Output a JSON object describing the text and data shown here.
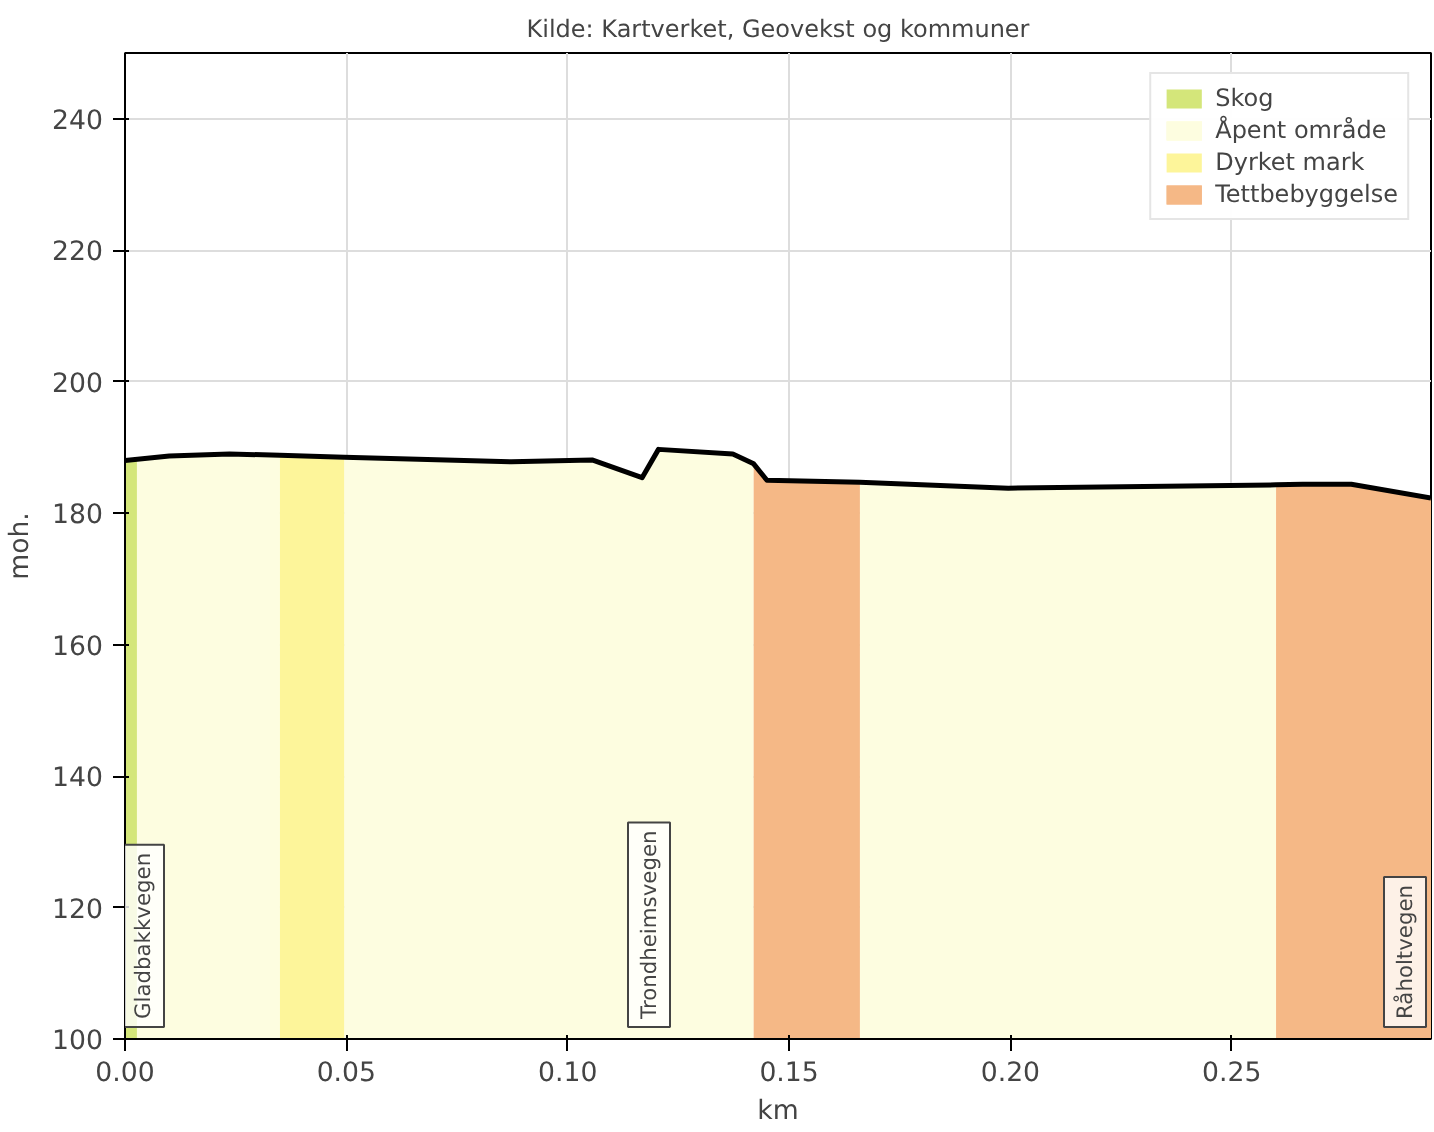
{
  "chart_data": {
    "type": "area",
    "title": "Kilde: Kartverket, Geovekst og kommuner",
    "xlabel": "km",
    "ylabel": "moh.",
    "xlim": [
      0,
      0.295
    ],
    "ylim": [
      100,
      250
    ],
    "xticks": [
      {
        "value": 0,
        "label": "0.00"
      },
      0.05,
      {
        "value": 0.1,
        "label": "0.10"
      },
      0.15,
      {
        "value": 0.2,
        "label": "0.20"
      },
      0.25
    ],
    "yticks": [
      100,
      120,
      140,
      160,
      180,
      200,
      220,
      240
    ],
    "grid": true,
    "legend": "top right",
    "series": [
      {
        "name": "Skog",
        "color": "#d4e67a",
        "x": [
          0,
          0.0027
        ],
        "values": [
          188,
          188.2
        ]
      },
      {
        "name": "Åpent område",
        "color": "#fdfde0",
        "x": [
          0.0027,
          0.01,
          0.0236,
          0.035,
          0.04,
          0.0495,
          0.06,
          0.0873,
          0.1055,
          0.1168,
          0.1205,
          0.1373,
          0.142,
          0.15,
          0.166,
          0.1995,
          0.26
        ],
        "values": [
          188.2,
          188.7,
          189.0,
          188.8,
          null,
          188.5,
          188.3,
          187.8,
          188.1,
          185.4,
          189.7,
          189.0,
          187.5,
          null,
          184.7,
          183.8,
          184.3
        ]
      },
      {
        "name": "Dyrket mark",
        "color": "#fdf59a",
        "x": [
          0.035,
          0.0495
        ],
        "values": [
          188.8,
          188.5
        ]
      },
      {
        "name": "Tettbebyggelse",
        "color": "#f5b886",
        "x": [
          0.142,
          0.145,
          0.166,
          0.2,
          0.26,
          0.266,
          0.277,
          0.295
        ],
        "values": [
          187.5,
          185.0,
          184.7,
          null,
          184.3,
          184.4,
          184.4,
          182.3
        ]
      },
      {
        "type": "line",
        "color": "#000000",
        "x": [
          0,
          0.01,
          0.0236,
          0.035,
          0.0495,
          0.06,
          0.0873,
          0.1055,
          0.1168,
          0.1205,
          0.1373,
          0.142,
          0.145,
          0.166,
          0.1995,
          0.26,
          0.266,
          0.277,
          0.295
        ],
        "values": [
          188,
          188.7,
          189.0,
          188.8,
          188.5,
          188.3,
          187.8,
          188.1,
          185.4,
          189.7,
          189.0,
          187.5,
          185.0,
          184.7,
          183.8,
          184.3,
          184.4,
          184.4,
          182.3
        ]
      }
    ],
    "annotations": [
      "Gladbakkvegen",
      "Trondheimsvegen",
      "Råholtvegen"
    ]
  }
}
